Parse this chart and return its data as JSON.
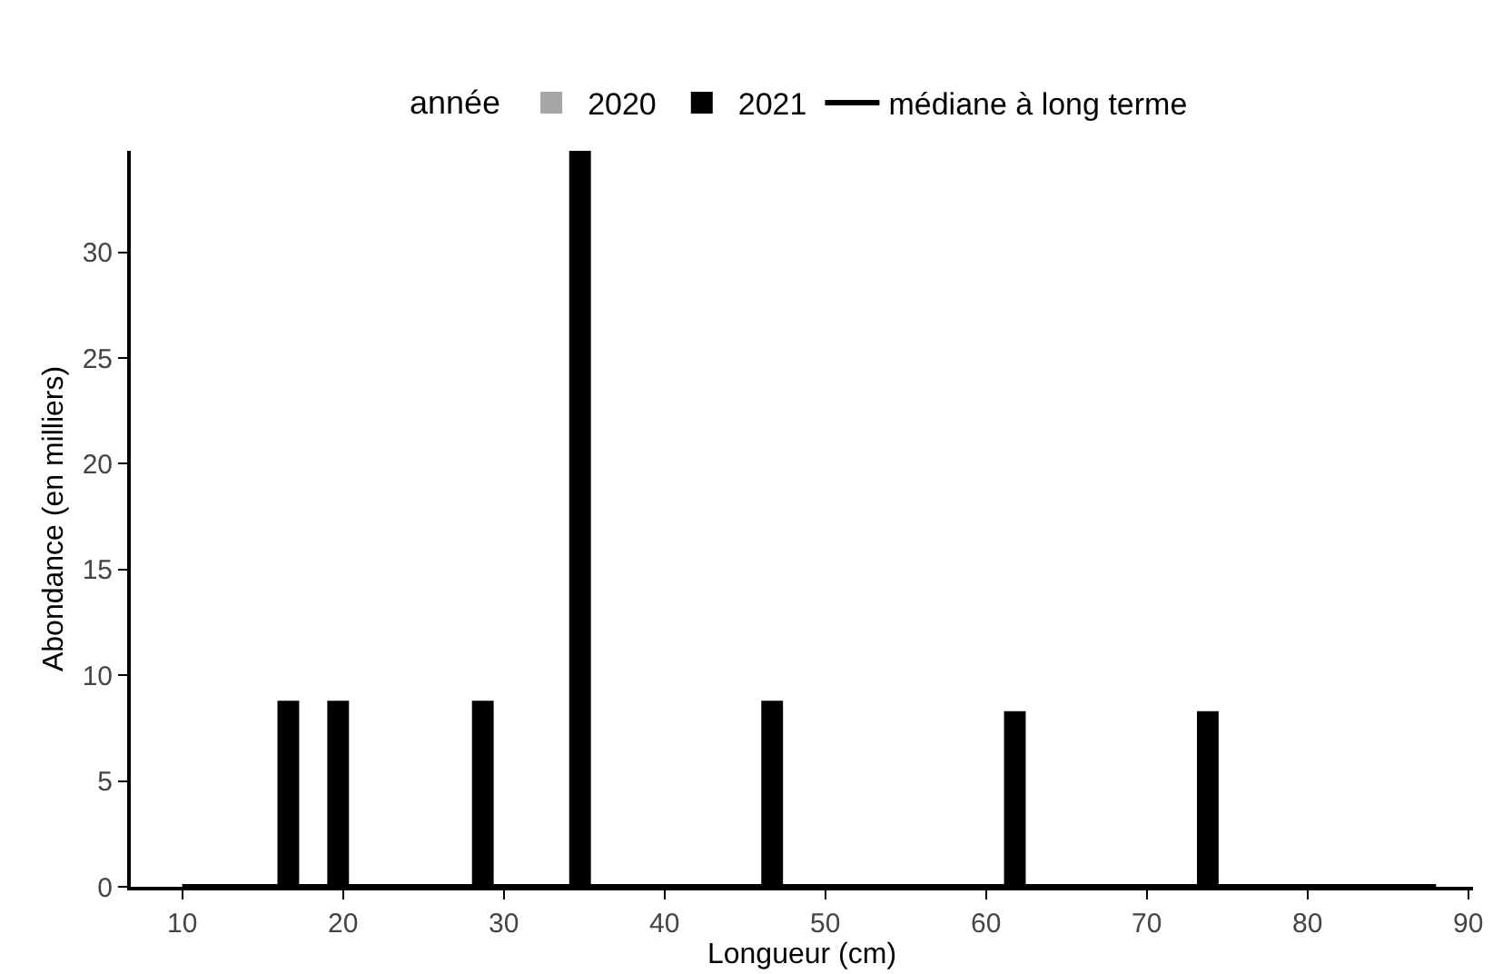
{
  "chart_data": {
    "type": "bar",
    "xlabel": "Longueur (cm)",
    "ylabel": "Abondance (en milliers)",
    "legend_title": "année",
    "x": [
      16.6,
      19.7,
      28.7,
      34.75,
      46.7,
      61.8,
      73.8
    ],
    "series": [
      {
        "name": "2020",
        "color": "#a6a6a6",
        "values": [
          0,
          0,
          0,
          0,
          0,
          0,
          0
        ]
      },
      {
        "name": "2021",
        "color": "#000000",
        "values": [
          8.8,
          8.8,
          8.8,
          34.8,
          8.8,
          8.3,
          8.3
        ]
      },
      {
        "name": "médiane à long terme",
        "type": "line",
        "color": "#000000",
        "x": [
          10,
          88
        ],
        "values": [
          0,
          0
        ]
      }
    ],
    "xlim": [
      6.8,
      90.3
    ],
    "xticks": [
      10,
      20,
      30,
      40,
      50,
      60,
      70,
      80,
      90
    ],
    "ylim": [
      0,
      34.8
    ],
    "yticks": [
      0,
      5,
      10,
      15,
      20,
      25,
      30
    ],
    "grid": false,
    "legend": "top",
    "marker": "none",
    "line_style": "solid"
  }
}
